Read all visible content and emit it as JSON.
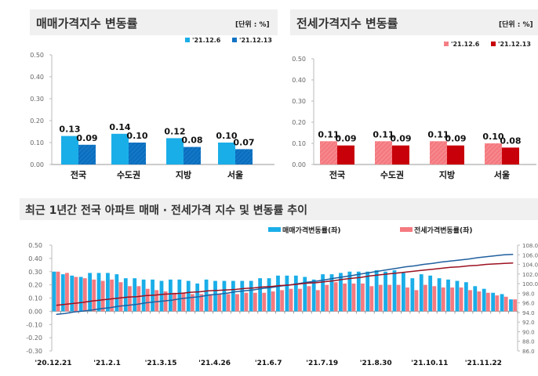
{
  "colors": {
    "sale_prev": "#1aaee8",
    "sale_cur": "#0b6fc0",
    "jeonse_prev": "#f47a80",
    "jeonse_cur": "#c8000a",
    "sale_index_line": "#1f5f9f",
    "jeonse_index_line": "#9c1020"
  },
  "chart_data": [
    {
      "type": "bar",
      "title": "매매가격지수 변동률",
      "unit": "[단위 : %]",
      "categories": [
        "전국",
        "수도권",
        "지방",
        "서울"
      ],
      "series": [
        {
          "name": "'21.12.6",
          "values": [
            0.13,
            0.14,
            0.12,
            0.1
          ]
        },
        {
          "name": "'21.12.13",
          "values": [
            0.09,
            0.1,
            0.08,
            0.07
          ]
        }
      ],
      "yticks": [
        "0.50",
        "0.40",
        "0.30",
        "0.20",
        "0.10",
        "0.00"
      ],
      "ylim": [
        0,
        0.5
      ],
      "legend": "top-right"
    },
    {
      "type": "bar",
      "title": "전세가격지수 변동률",
      "unit": "[단위 : %]",
      "categories": [
        "전국",
        "수도권",
        "지방",
        "서울"
      ],
      "series": [
        {
          "name": "'21.12.6",
          "values": [
            0.11,
            0.11,
            0.11,
            0.1
          ]
        },
        {
          "name": "'21.12.13",
          "values": [
            0.09,
            0.09,
            0.09,
            0.08
          ]
        }
      ],
      "yticks": [
        "0.50",
        "0.40",
        "0.30",
        "0.20",
        "0.10",
        "0.00"
      ],
      "ylim": [
        0,
        0.5
      ],
      "legend": "top-right"
    },
    {
      "type": "bar+line",
      "title": "최근 1년간 전국 아파트 매매 · 전세가격 지수 및 변동률 추이",
      "xticks": [
        "'20.12.21",
        "'21.2.1",
        "'21.3.15",
        "'21.4.26",
        "'21.6.7",
        "'21.7.19",
        "'21.8.30",
        "'21.10.11",
        "'21.11.22"
      ],
      "yticks_left": [
        "0.50",
        "0.40",
        "0.30",
        "0.20",
        "0.10",
        "0.00",
        "-0.10",
        "-0.20",
        "-0.30"
      ],
      "ylim_left": [
        -0.3,
        0.5
      ],
      "yticks_right": [
        "108.0",
        "106.0",
        "104.0",
        "102.0",
        "100.0",
        "98.0",
        "96.0",
        "94.0",
        "92.0",
        "90.0",
        "88.0",
        "86.0"
      ],
      "ylim_right": [
        86,
        108
      ],
      "legend": "top-right",
      "bar_series": [
        {
          "name": "매매가격변동률(좌)",
          "values": [
            0.3,
            0.28,
            0.27,
            0.26,
            0.29,
            0.29,
            0.29,
            0.28,
            0.25,
            0.25,
            0.24,
            0.24,
            0.23,
            0.24,
            0.24,
            0.23,
            0.21,
            0.24,
            0.23,
            0.23,
            0.23,
            0.23,
            0.23,
            0.25,
            0.25,
            0.27,
            0.27,
            0.27,
            0.26,
            0.24,
            0.28,
            0.28,
            0.29,
            0.3,
            0.3,
            0.3,
            0.31,
            0.3,
            0.31,
            0.29,
            0.25,
            0.28,
            0.27,
            0.25,
            0.24,
            0.23,
            0.22,
            0.19,
            0.17,
            0.14,
            0.13,
            0.09
          ]
        },
        {
          "name": "전세가격변동률(좌)",
          "values": [
            0.3,
            0.29,
            0.26,
            0.25,
            0.24,
            0.23,
            0.24,
            0.22,
            0.19,
            0.19,
            0.17,
            0.16,
            0.15,
            0.14,
            0.14,
            0.13,
            0.13,
            0.13,
            0.13,
            0.13,
            0.13,
            0.14,
            0.14,
            0.14,
            0.15,
            0.16,
            0.17,
            0.17,
            0.19,
            0.16,
            0.2,
            0.22,
            0.21,
            0.21,
            0.21,
            0.19,
            0.2,
            0.2,
            0.2,
            0.18,
            0.16,
            0.2,
            0.19,
            0.18,
            0.18,
            0.18,
            0.16,
            0.15,
            0.14,
            0.12,
            0.11,
            0.09
          ]
        }
      ],
      "line_series": [
        {
          "values": [
            93.6,
            93.8,
            94.1,
            94.3,
            94.5,
            94.8,
            95.0,
            95.3,
            95.5,
            95.7,
            96.0,
            96.2,
            96.4,
            96.6,
            96.9,
            97.1,
            97.3,
            97.6,
            97.8,
            98.0,
            98.3,
            98.5,
            98.7,
            99.0,
            99.2,
            99.5,
            99.7,
            100.0,
            100.3,
            100.5,
            100.8,
            101.1,
            101.4,
            101.7,
            102.0,
            102.3,
            102.6,
            102.9,
            103.2,
            103.5,
            103.7,
            104.0,
            104.2,
            104.5,
            104.7,
            104.9,
            105.1,
            105.4,
            105.6,
            105.8,
            106.0,
            106.1
          ]
        },
        {
          "values": [
            95.5,
            95.7,
            95.9,
            96.1,
            96.4,
            96.6,
            96.8,
            97.0,
            97.2,
            97.3,
            97.5,
            97.6,
            97.8,
            97.9,
            98.0,
            98.2,
            98.3,
            98.5,
            98.6,
            98.7,
            98.8,
            99.0,
            99.1,
            99.3,
            99.4,
            99.6,
            99.7,
            99.9,
            100.1,
            100.2,
            100.4,
            100.6,
            100.9,
            101.1,
            101.3,
            101.6,
            101.8,
            102.0,
            102.2,
            102.4,
            102.6,
            102.8,
            103.0,
            103.2,
            103.4,
            103.5,
            103.7,
            103.8,
            104.0,
            104.1,
            104.2,
            104.3
          ]
        }
      ]
    }
  ]
}
